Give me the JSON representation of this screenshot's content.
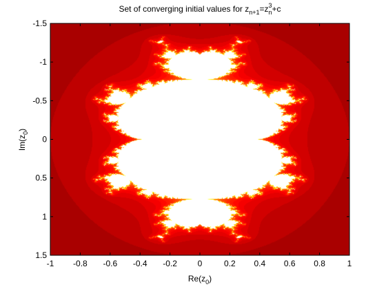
{
  "chart_data": {
    "type": "heatmap",
    "title": {
      "main": "Set of converging initial values for z",
      "sub_1": "n+1",
      "eq": "=z",
      "sub_2": "n",
      "sup": "3",
      "tail": "+c"
    },
    "xlabel": {
      "main": "Re(z",
      "sub": "0",
      "tail": ")"
    },
    "ylabel": {
      "main": "Im(z",
      "sub": "0",
      "tail": ")"
    },
    "xlim": [
      -1,
      1
    ],
    "ylim": [
      -1.5,
      1.5
    ],
    "y_reversed": true,
    "x_ticks": [
      -1,
      -0.8,
      -0.6,
      -0.4,
      -0.2,
      0,
      0.2,
      0.4,
      0.6,
      0.8,
      1
    ],
    "x_tick_labels": [
      "-1",
      "-0.8",
      "-0.6",
      "-0.4",
      "-0.2",
      "0",
      "0.2",
      "0.4",
      "0.6",
      "0.8",
      "1"
    ],
    "y_ticks": [
      -1.5,
      -1,
      -0.5,
      0,
      0.5,
      1,
      1.5
    ],
    "y_tick_labels": [
      "-1.5",
      "-1",
      "-0.5",
      "0",
      "0.5",
      "1",
      "1.5"
    ],
    "iteration": "z_{n+1} = z_n^3 + c",
    "z0": 0,
    "colormap": "hot",
    "colors": {
      "background": "#2a0000",
      "converged": "#ffffff",
      "axis": "#000000"
    },
    "grid": false,
    "legend": "none"
  }
}
